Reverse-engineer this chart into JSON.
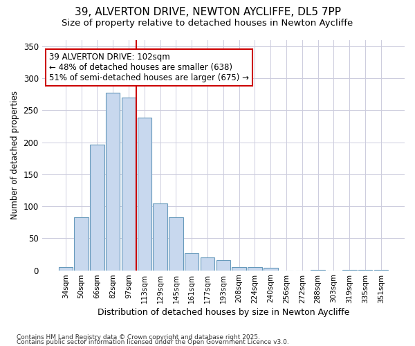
{
  "title_line1": "39, ALVERTON DRIVE, NEWTON AYCLIFFE, DL5 7PP",
  "title_line2": "Size of property relative to detached houses in Newton Aycliffe",
  "xlabel": "Distribution of detached houses by size in Newton Aycliffe",
  "ylabel": "Number of detached properties",
  "categories": [
    "34sqm",
    "50sqm",
    "66sqm",
    "82sqm",
    "97sqm",
    "113sqm",
    "129sqm",
    "145sqm",
    "161sqm",
    "177sqm",
    "193sqm",
    "208sqm",
    "224sqm",
    "240sqm",
    "256sqm",
    "272sqm",
    "288sqm",
    "303sqm",
    "319sqm",
    "335sqm",
    "351sqm"
  ],
  "values": [
    5,
    83,
    196,
    277,
    270,
    238,
    104,
    83,
    27,
    20,
    16,
    5,
    5,
    4,
    0,
    0,
    1,
    0,
    1,
    1,
    1
  ],
  "bar_color": "#c8d8ee",
  "bar_edge_color": "#6699bb",
  "red_line_x": 4.5,
  "annotation_text": "39 ALVERTON DRIVE: 102sqm\n← 48% of detached houses are smaller (638)\n51% of semi-detached houses are larger (675) →",
  "annotation_box_color": "#ffffff",
  "annotation_box_edge": "#cc0000",
  "footer_line1": "Contains HM Land Registry data © Crown copyright and database right 2025.",
  "footer_line2": "Contains public sector information licensed under the Open Government Licence v3.0.",
  "ylim": [
    0,
    360
  ],
  "yticks": [
    0,
    50,
    100,
    150,
    200,
    250,
    300,
    350
  ],
  "bg_color": "#ffffff",
  "grid_color": "#ccccdd"
}
